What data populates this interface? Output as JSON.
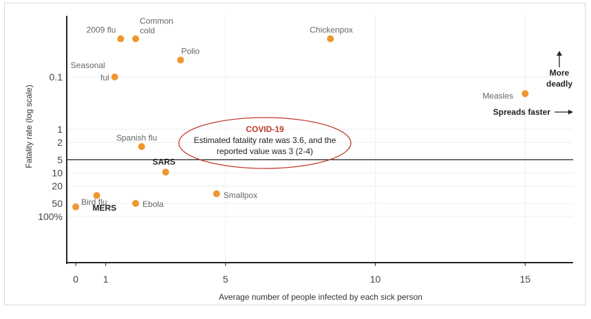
{
  "chart_data": {
    "type": "scatter",
    "title": "",
    "xlabel": "Average number of people infected by each sick person",
    "ylabel": "Fatality rate (log scale)",
    "y_scale": "log",
    "xlim": [
      -0.3,
      16.6
    ],
    "x_ticks": [
      {
        "value": 0,
        "label": "0"
      },
      {
        "value": 1,
        "label": "1"
      },
      {
        "value": 5,
        "label": "5"
      },
      {
        "value": 10,
        "label": "10"
      },
      {
        "value": 15,
        "label": "15"
      }
    ],
    "y_ticks": [
      {
        "value": 100,
        "label": "100%"
      },
      {
        "value": 50,
        "label": "50"
      },
      {
        "value": 20,
        "label": "20"
      },
      {
        "value": 10,
        "label": "10"
      },
      {
        "value": 5,
        "label": "5"
      },
      {
        "value": 2,
        "label": "2"
      },
      {
        "value": 1,
        "label": "1"
      },
      {
        "value": 0.1,
        "label": "0.1"
      }
    ],
    "points": [
      {
        "label": "Bird flu",
        "x": 0.0,
        "y": 60,
        "bold": false
      },
      {
        "label": "MERS",
        "x": 0.7,
        "y": 33,
        "bold": true
      },
      {
        "label": "Ebola",
        "x": 2.0,
        "y": 50,
        "bold": false
      },
      {
        "label": "Smallpox",
        "x": 4.7,
        "y": 30,
        "bold": false
      },
      {
        "label": "SARS",
        "x": 3.0,
        "y": 9.6,
        "bold": true
      },
      {
        "label": "Spanish flu",
        "x": 2.2,
        "y": 2.5,
        "bold": false
      },
      {
        "label": "Measles",
        "x": 15.0,
        "y": 0.18,
        "bold": false
      },
      {
        "label": "Seasonal ful",
        "x": 1.3,
        "y": 0.1,
        "bold": false
      },
      {
        "label": "Polio",
        "x": 3.5,
        "y": 0.055,
        "bold": false
      },
      {
        "label": "2009 flu",
        "x": 1.5,
        "y": 0.026,
        "bold": false
      },
      {
        "label": "Common cold",
        "x": 2.0,
        "y": 0.026,
        "bold": false
      },
      {
        "label": "Chickenpox",
        "x": 8.5,
        "y": 0.026,
        "bold": false
      }
    ],
    "threshold_y": 5,
    "point_color": "#f0962e",
    "covid_color": "#c0392b",
    "grid": true
  },
  "annotations": {
    "more_deadly": [
      "More",
      "deadly"
    ],
    "spreads_faster": "Spreads faster",
    "covid_title": "COVID-19",
    "covid_line1": "Estimated fatality rate was 3.6, and the",
    "covid_line2": "reported value was 3 (2-4)"
  }
}
